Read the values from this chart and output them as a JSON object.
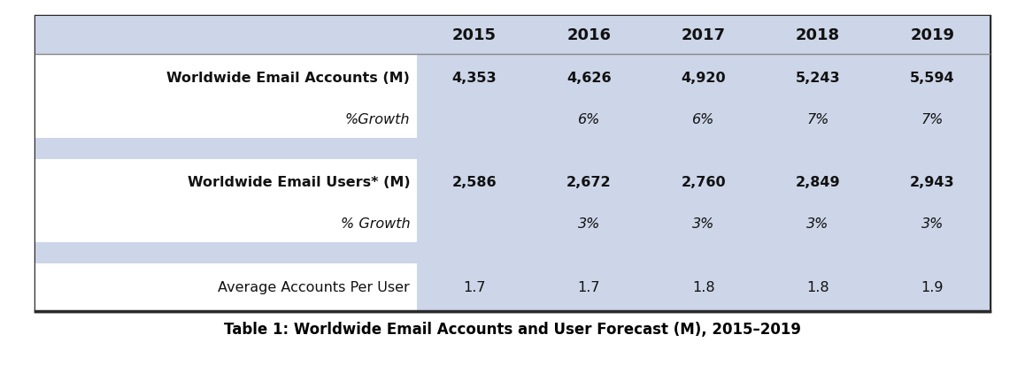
{
  "title": "Table 1: Worldwide Email Accounts and User Forecast (M), 2015–2019",
  "years": [
    "2015",
    "2016",
    "2017",
    "2018",
    "2019"
  ],
  "rows": [
    {
      "label": "Worldwide Email Accounts (M)",
      "label_bold": true,
      "label_italic": false,
      "values": [
        "4,353",
        "4,626",
        "4,920",
        "5,243",
        "5,594"
      ],
      "values_bold": true,
      "values_italic": false,
      "bg": "#ffffff",
      "type": "data"
    },
    {
      "label": "%Growth",
      "label_bold": false,
      "label_italic": true,
      "values": [
        "",
        "6%",
        "6%",
        "7%",
        "7%"
      ],
      "values_bold": false,
      "values_italic": true,
      "bg": "#ffffff",
      "type": "growth"
    },
    {
      "label": "",
      "label_bold": false,
      "label_italic": false,
      "values": [
        "",
        "",
        "",
        "",
        ""
      ],
      "values_bold": false,
      "values_italic": false,
      "bg": "#ccd6e8",
      "type": "spacer"
    },
    {
      "label": "Worldwide Email Users* (M)",
      "label_bold": true,
      "label_italic": false,
      "values": [
        "2,586",
        "2,672",
        "2,760",
        "2,849",
        "2,943"
      ],
      "values_bold": true,
      "values_italic": false,
      "bg": "#ffffff",
      "type": "data"
    },
    {
      "label": "% Growth",
      "label_bold": false,
      "label_italic": true,
      "values": [
        "",
        "3%",
        "3%",
        "3%",
        "3%"
      ],
      "values_bold": false,
      "values_italic": true,
      "bg": "#ffffff",
      "type": "growth"
    },
    {
      "label": "",
      "label_bold": false,
      "label_italic": false,
      "values": [
        "",
        "",
        "",
        "",
        ""
      ],
      "values_bold": false,
      "values_italic": false,
      "bg": "#ccd6e8",
      "type": "spacer"
    },
    {
      "label": "Average Accounts Per User",
      "label_bold": false,
      "label_italic": false,
      "values": [
        "1.7",
        "1.7",
        "1.8",
        "1.8",
        "1.9"
      ],
      "values_bold": false,
      "values_italic": false,
      "bg": "#ffffff",
      "type": "data"
    }
  ],
  "header_bg": "#ccd6e8",
  "outer_border_color": "#2a2a2a",
  "text_color": "#111111",
  "title_color": "#000000",
  "fig_bg": "#ffffff",
  "table_border": 2.5,
  "header_line_color": "#888888"
}
